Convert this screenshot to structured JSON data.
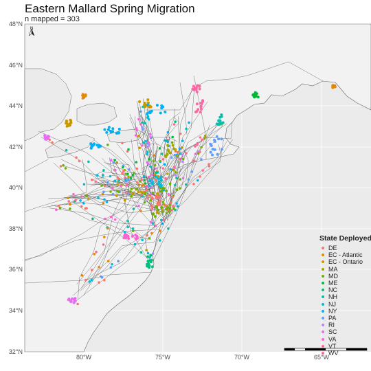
{
  "map": {
    "title": "Eastern Mallard Spring Migration",
    "subtitle": "n mapped = 303",
    "north_arrow_label": "N",
    "lat_ticks": [
      "48°N",
      "46°N",
      "44°N",
      "42°N",
      "40°N",
      "38°N",
      "36°N",
      "34°N",
      "32°N"
    ],
    "lon_ticks": [
      "80°W",
      "75°W",
      "70°W",
      "65°W"
    ],
    "legend": {
      "title": "State Deployed",
      "entries": [
        {
          "label": "DE",
          "color": "#f8766d"
        },
        {
          "label": "EC - Atlantic",
          "color": "#e58700"
        },
        {
          "label": "EC - Ontario",
          "color": "#c99800"
        },
        {
          "label": "MA",
          "color": "#a3a500"
        },
        {
          "label": "MD",
          "color": "#6bb100"
        },
        {
          "label": "ME",
          "color": "#00ba38"
        },
        {
          "label": "NC",
          "color": "#00bf7d"
        },
        {
          "label": "NH",
          "color": "#00c0af"
        },
        {
          "label": "NJ",
          "color": "#00bcd8"
        },
        {
          "label": "NY",
          "color": "#00b0f6"
        },
        {
          "label": "PA",
          "color": "#619cff"
        },
        {
          "label": "RI",
          "color": "#b983ff"
        },
        {
          "label": "SC",
          "color": "#e76bf3"
        },
        {
          "label": "VA",
          "color": "#fd61d1"
        },
        {
          "label": "VT",
          "color": "#ff67a4"
        },
        {
          "label": "WV",
          "color": "#ff6c91"
        }
      ]
    },
    "colors": {
      "panel": "#ebebeb",
      "land": "#f2f2f2",
      "gridline": "#ffffff",
      "boundary": "#555555"
    }
  }
}
